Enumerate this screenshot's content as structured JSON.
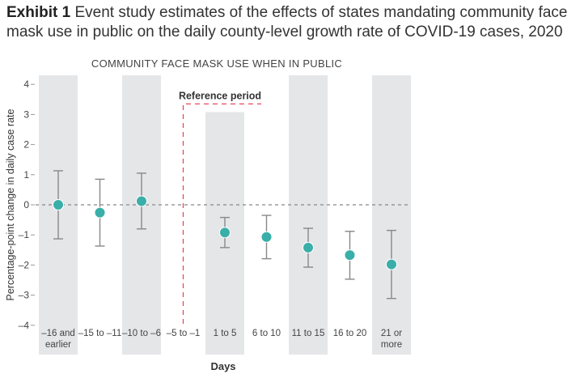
{
  "title_bold": "Exhibit 1",
  "title_text": "Event study estimates of the effects of states mandating community face mask use in public on the daily county-level growth rate of COVID-19 cases, 2020",
  "chart_data": {
    "type": "scatter",
    "subtitle": "COMMUNITY FACE MASK USE WHEN IN PUBLIC",
    "xlabel": "Days",
    "ylabel": "Percentage-point change in daily case rate",
    "ylim": [
      -4,
      4
    ],
    "yticks": [
      4,
      3,
      2,
      1,
      0,
      -1,
      -2,
      -3,
      -4
    ],
    "ytick_labels": [
      "4",
      "3",
      "2",
      "1",
      "0",
      "–1",
      "–2",
      "–3",
      "–4"
    ],
    "categories": [
      [
        "–16 and",
        "earlier"
      ],
      [
        "–15 to –11"
      ],
      [
        "–10 to –6"
      ],
      [
        "–5 to –1"
      ],
      [
        "1 to 5"
      ],
      [
        "6 to 10"
      ],
      [
        "11 to 15"
      ],
      [
        "16 to 20"
      ],
      [
        "21 or",
        "more"
      ]
    ],
    "estimates": [
      0,
      -0.26,
      0.12,
      null,
      -0.92,
      -1.07,
      -1.42,
      -1.67,
      -1.98
    ],
    "ci_low": [
      -1.13,
      -1.37,
      -0.8,
      null,
      -1.42,
      -1.79,
      -2.07,
      -2.47,
      -3.11
    ],
    "ci_high": [
      1.13,
      0.85,
      1.05,
      null,
      -0.42,
      -0.35,
      -0.78,
      -0.88,
      -0.85
    ],
    "shaded_categories": [
      0,
      2,
      4,
      6,
      8
    ],
    "reference_period_index": 3,
    "reference_label": "Reference period",
    "zero_line": "dashed",
    "colors": {
      "point": "#3aaea9",
      "band": "#e5e6e8",
      "reference": "#e8485a",
      "errorbar": "#888888"
    }
  }
}
